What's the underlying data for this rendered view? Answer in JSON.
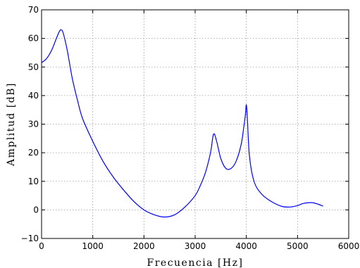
{
  "chart_data": {
    "type": "line",
    "title": "",
    "xlabel": "Frecuencia [Hz]",
    "ylabel": "Amplitud [dB]",
    "xlim": [
      0,
      6000
    ],
    "ylim": [
      -10,
      70
    ],
    "xticks": [
      0,
      1000,
      2000,
      3000,
      4000,
      5000,
      6000
    ],
    "yticks": [
      -10,
      0,
      10,
      20,
      30,
      40,
      50,
      60,
      70
    ],
    "x_tick_labels": [
      "0",
      "1000",
      "2000",
      "3000",
      "4000",
      "5000",
      "6000"
    ],
    "y_tick_labels": [
      "−10",
      "0",
      "10",
      "20",
      "30",
      "40",
      "50",
      "60",
      "70"
    ],
    "grid": true,
    "color": "#0000ff",
    "series": [
      {
        "x": [
          0,
          100,
          200,
          300,
          350,
          380,
          420,
          500,
          600,
          700,
          800,
          1000,
          1200,
          1400,
          1600,
          1800,
          2000,
          2200,
          2400,
          2600,
          2800,
          3000,
          3100,
          3200,
          3300,
          3360,
          3420,
          3500,
          3600,
          3700,
          3800,
          3900,
          3950,
          3980,
          4000,
          4020,
          4060,
          4150,
          4300,
          4500,
          4700,
          4850,
          5000,
          5100,
          5200,
          5300,
          5400,
          5500
        ],
        "y": [
          51.5,
          53,
          56,
          60.5,
          62.5,
          63,
          62,
          56,
          46,
          38.5,
          32,
          24,
          17,
          11.5,
          7,
          3,
          0,
          -1.7,
          -2.5,
          -1.7,
          1,
          5,
          8.5,
          13,
          20,
          26.5,
          24,
          18,
          14.5,
          14.5,
          17,
          23,
          29,
          33,
          36.8,
          32,
          19,
          10,
          5.5,
          2.8,
          1.2,
          1,
          1.5,
          2.2,
          2.5,
          2.5,
          2,
          1.3
        ]
      }
    ]
  }
}
